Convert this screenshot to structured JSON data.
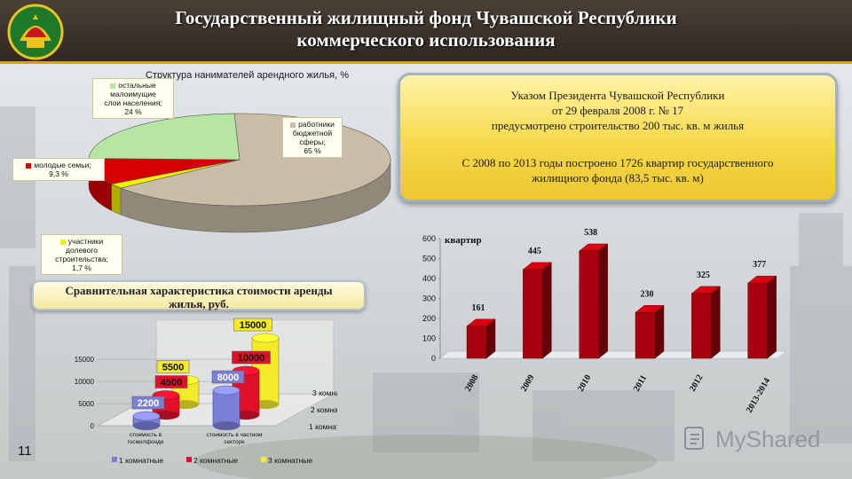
{
  "header": {
    "title_line1": "Государственный жилищный фонд Чувашской Республики",
    "title_line2": "коммерческого использования",
    "emblem": "chuvash-emblem-icon"
  },
  "info_box": {
    "line1": "Указом Президента Чувашской Республики",
    "line2": "от 29 февраля 2008 г. № 17",
    "line3": "предусмотрено строительство 200 тыс. кв. м жилья",
    "line4": "С 2008 по 2013 годы построено 1726 квартир государственного",
    "line5": "жилищного фонда (83,5 тыс. кв. м)"
  },
  "comparison_box": {
    "line1": "Сравнительная характеристика стоимости аренды",
    "line2": "жилья, руб."
  },
  "slide_number": "11",
  "watermark": {
    "text": "MyShared",
    "icon": "myshared-logo-icon"
  },
  "colors": {
    "accent": "#d9a400",
    "bar_red": "#a8000e",
    "pie_beige": "#c9bda8",
    "pie_green": "#b7e6a2",
    "pie_red": "#d60000",
    "pie_yellow": "#f2f000"
  },
  "chart_data": [
    {
      "type": "pie",
      "title": "Структура нанимателей арендного жилья, %",
      "slices": [
        {
          "label_lines": [
            "работники",
            "бюджетной",
            "сферы;",
            "65 %"
          ],
          "value": 65,
          "color": "#c9bda8"
        },
        {
          "label_lines": [
            "остальные",
            "малоимущие",
            "слои населения;",
            "24 %"
          ],
          "value": 24,
          "color": "#b7e6a2"
        },
        {
          "label_lines": [
            "молодые семьи;",
            "9,3 %"
          ],
          "value": 9.3,
          "color": "#d60000"
        },
        {
          "label_lines": [
            "участники",
            "долевого",
            "строительства;",
            "1,7 %"
          ],
          "value": 1.7,
          "color": "#f2f000"
        }
      ]
    },
    {
      "type": "bar",
      "subtype": "3d-grouped",
      "categories": [
        [
          "стоимость в",
          "госжилфонде"
        ],
        [
          "стоимость в частном",
          "секторе"
        ]
      ],
      "series": [
        {
          "name": "1 комнатные",
          "values": [
            2200,
            8000
          ],
          "color": "#7b7fd6"
        },
        {
          "name": "2 комнатные",
          "values": [
            4500,
            10000
          ],
          "color": "#e0102a"
        },
        {
          "name": "3 комнатные",
          "values": [
            5500,
            15000
          ],
          "color": "#f3ea2a"
        }
      ],
      "ylim": [
        0,
        15000
      ],
      "yticks": [
        "0",
        "5000",
        "10000",
        "15000"
      ],
      "depth_labels": [
        "1 комнатные",
        "2 комнатные",
        "3 комнатные"
      ],
      "legend": [
        "1 комнатные",
        "2 комнатные",
        "3 комнатные"
      ],
      "legend_position": "bottom"
    },
    {
      "type": "bar",
      "ylabel": "квартир",
      "categories": [
        "2008",
        "2009",
        "2010",
        "2011",
        "2012",
        "2013-2014"
      ],
      "values": [
        161,
        445,
        538,
        230,
        325,
        377
      ],
      "value_labels": [
        "161",
        "445",
        "538",
        "230",
        "325",
        "377"
      ],
      "ylim": [
        0,
        600
      ],
      "yticks": [
        "0",
        "100",
        "200",
        "300",
        "400",
        "500",
        "600"
      ],
      "color": "#a8000e"
    }
  ]
}
